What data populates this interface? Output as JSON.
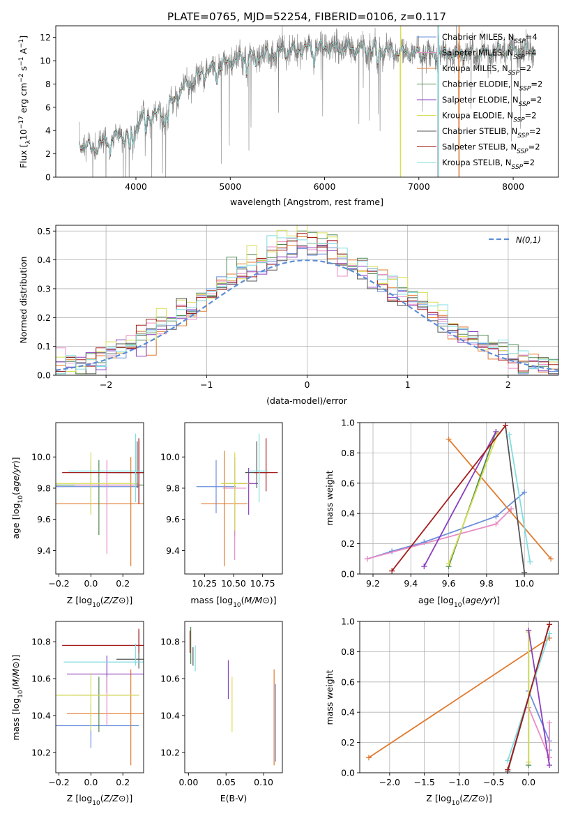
{
  "figure_title": "PLATE=0765, MJD=52254, FIBERID=0106, z=0.117",
  "colors": [
    "#6a8fde",
    "#e07a2f",
    "#4f8a53",
    "#8a3fbf",
    "#e98bc4",
    "#d8de55",
    "#555555",
    "#a51c1c",
    "#7fdde0"
  ],
  "chart_data": [
    {
      "id": "spectrum",
      "type": "line",
      "xlabel": "wavelength [Angstrom, rest frame]",
      "ylabel": "Flux [f_λ10^-17 erg cm^-2 s^-1 A^-1]",
      "xlim": [
        3150,
        8480
      ],
      "ylim": [
        0,
        13
      ],
      "xticks": [
        4000,
        5000,
        6000,
        7000,
        8000
      ],
      "yticks": [
        0,
        2,
        4,
        6,
        8,
        10,
        12
      ],
      "grid": false,
      "legend_position": "right",
      "data_color": "#808080",
      "series": [
        {
          "name": "Chabrier MILES, N_SSP=4",
          "color": "#6a8fde"
        },
        {
          "name": "Salpeter MILES, N_SSP=4",
          "color": "#e98bc4"
        },
        {
          "name": "Kroupa MILES, N_SSP=2",
          "color": "#e07a2f"
        },
        {
          "name": "Chabrier ELODIE, N_SSP=2",
          "color": "#4f8a53"
        },
        {
          "name": "Salpeter ELODIE, N_SSP=2",
          "color": "#8a3fbf"
        },
        {
          "name": "Kroupa ELODIE, N_SSP=2",
          "color": "#d8de55"
        },
        {
          "name": "Chabrier STELIB, N_SSP=2",
          "color": "#555555"
        },
        {
          "name": "Salpeter STELIB, N_SSP=2",
          "color": "#a51c1c"
        },
        {
          "name": "Kroupa STELIB, N_SSP=2",
          "color": "#7fdde0"
        }
      ],
      "continuum": [
        [
          3400,
          3.0
        ],
        [
          3550,
          2.4
        ],
        [
          3700,
          3.2
        ],
        [
          3800,
          3.5
        ],
        [
          3950,
          3.6
        ],
        [
          4050,
          5.0
        ],
        [
          4300,
          5.6
        ],
        [
          4500,
          7.6
        ],
        [
          4700,
          8.9
        ],
        [
          4900,
          9.6
        ],
        [
          5100,
          10.2
        ],
        [
          5300,
          10.5
        ],
        [
          5600,
          10.8
        ],
        [
          6000,
          11.2
        ],
        [
          6500,
          11.0
        ],
        [
          7000,
          10.6
        ],
        [
          7500,
          10.6
        ],
        [
          8000,
          10.9
        ],
        [
          8200,
          11.0
        ]
      ]
    },
    {
      "id": "residuals",
      "type": "histogram",
      "xlabel": "(data-model)/error",
      "ylabel": "Normed distribution",
      "xlim": [
        -2.5,
        2.5
      ],
      "ylim": [
        0,
        0.52
      ],
      "xticks": [
        -2,
        -1,
        0,
        1,
        2
      ],
      "yticks": [
        0.0,
        0.1,
        0.2,
        0.3,
        0.4,
        0.5
      ],
      "grid": true,
      "legend_position": "upper right",
      "reference_curve": {
        "name": "N(0,1)",
        "color": "#5b8dd6"
      },
      "bins": [
        -2.5,
        2.5,
        50
      ]
    },
    {
      "id": "age_vs_Z",
      "type": "errorbar",
      "xlabel": "Z [log10(Z/Z☉)]",
      "ylabel": "age  [log10(age/yr)]",
      "xlim": [
        -0.22,
        0.33
      ],
      "ylim": [
        9.25,
        10.22
      ],
      "xticks": [
        -0.2,
        0.0,
        0.2
      ],
      "yticks": [
        9.4,
        9.6,
        9.8,
        10.0
      ],
      "grid": false,
      "points": [
        {
          "x": 0.0,
          "y": 9.81,
          "xerr": 0.3,
          "yerr": [
            0.17,
            0.17
          ],
          "color": "#6a8fde"
        },
        {
          "x": 0.25,
          "y": 9.7,
          "xerr": 0.5,
          "yerr": [
            0.4,
            0.3
          ],
          "color": "#e07a2f"
        },
        {
          "x": 0.05,
          "y": 9.82,
          "xerr": 0.3,
          "yerr": [
            0.32,
            0.16
          ],
          "color": "#4f8a53"
        },
        {
          "x": 0.3,
          "y": 9.9,
          "xerr": 0.2,
          "yerr": [
            0.2,
            0.2
          ],
          "color": "#8a3fbf"
        },
        {
          "x": 0.1,
          "y": 9.82,
          "xerr": 0.2,
          "yerr": [
            0.44,
            0.16
          ],
          "color": "#e98bc4"
        },
        {
          "x": 0.0,
          "y": 9.83,
          "xerr": 0.3,
          "yerr": [
            0.2,
            0.2
          ],
          "color": "#d8de55"
        },
        {
          "x": 0.29,
          "y": 9.9,
          "xerr": 0.15,
          "yerr": [
            0.1,
            0.2
          ],
          "color": "#555555"
        },
        {
          "x": 0.3,
          "y": 9.9,
          "xerr": 0.48,
          "yerr": [
            0.2,
            0.22
          ],
          "color": "#a51c1c"
        },
        {
          "x": 0.28,
          "y": 9.91,
          "xerr": 0.42,
          "yerr": [
            0.2,
            0.24
          ],
          "color": "#7fdde0"
        }
      ]
    },
    {
      "id": "age_vs_mass",
      "type": "errorbar",
      "xlabel": "mass [log10(M/M☉)]",
      "ylabel": "",
      "xlim": [
        10.08,
        10.92
      ],
      "ylim": [
        9.25,
        10.22
      ],
      "xticks": [
        10.25,
        10.5,
        10.75
      ],
      "xtick_labels": [
        "10.25",
        "10.50",
        "10.75"
      ],
      "yticks": [
        9.4,
        9.6,
        9.8,
        10.0
      ],
      "grid": false,
      "points": [
        {
          "x": 10.35,
          "y": 9.81,
          "xerr": 0.17,
          "yerr": [
            0.17,
            0.17
          ],
          "color": "#6a8fde"
        },
        {
          "x": 10.42,
          "y": 9.7,
          "xerr": 0.2,
          "yerr": [
            0.4,
            0.34
          ],
          "color": "#e07a2f"
        },
        {
          "x": 10.51,
          "y": 9.83,
          "xerr": 0.1,
          "yerr": [
            0.34,
            0.17
          ],
          "color": "#4f8a53"
        },
        {
          "x": 10.63,
          "y": 9.83,
          "xerr": 0.08,
          "yerr": [
            0.2,
            0.1
          ],
          "color": "#8a3fbf"
        },
        {
          "x": 10.51,
          "y": 9.8,
          "xerr": 0.1,
          "yerr": [
            0.46,
            0.19
          ],
          "color": "#e98bc4"
        },
        {
          "x": 10.51,
          "y": 9.83,
          "xerr": 0.12,
          "yerr": [
            0.3,
            0.2
          ],
          "color": "#d8de55"
        },
        {
          "x": 10.7,
          "y": 9.9,
          "xerr": 0.1,
          "yerr": [
            0.1,
            0.2
          ],
          "color": "#555555"
        },
        {
          "x": 10.78,
          "y": 9.9,
          "xerr": 0.1,
          "yerr": [
            0.12,
            0.22
          ],
          "color": "#a51c1c"
        },
        {
          "x": 10.72,
          "y": 9.91,
          "xerr": 0.08,
          "yerr": [
            0.2,
            0.24
          ],
          "color": "#7fdde0"
        }
      ]
    },
    {
      "id": "weight_vs_age",
      "type": "line",
      "xlabel": "age  [log10(age/yr)]",
      "ylabel": "mass weight",
      "xlim": [
        9.13,
        10.18
      ],
      "ylim": [
        0,
        1
      ],
      "xticks": [
        9.2,
        9.4,
        9.6,
        9.8,
        10.0
      ],
      "yticks": [
        0.0,
        0.2,
        0.4,
        0.6,
        0.8,
        1.0
      ],
      "grid": true,
      "series": [
        {
          "color": "#6a8fde",
          "x": [
            9.17,
            9.3,
            9.47,
            9.85,
            10.0
          ],
          "y": [
            0.1,
            0.15,
            0.21,
            0.38,
            0.54
          ]
        },
        {
          "color": "#e98bc4",
          "x": [
            9.17,
            9.85,
            9.93
          ],
          "y": [
            0.1,
            0.33,
            0.43
          ]
        },
        {
          "color": "#e07a2f",
          "x": [
            9.6,
            10.14
          ],
          "y": [
            0.89,
            0.1
          ]
        },
        {
          "color": "#4f8a53",
          "x": [
            9.6,
            9.85
          ],
          "y": [
            0.05,
            0.94
          ]
        },
        {
          "color": "#d8de55",
          "x": [
            9.6,
            9.86
          ],
          "y": [
            0.07,
            0.93
          ]
        },
        {
          "color": "#8a3fbf",
          "x": [
            9.47,
            9.85
          ],
          "y": [
            0.05,
            0.94
          ]
        },
        {
          "color": "#555555",
          "x": [
            9.9,
            10.0
          ],
          "y": [
            0.98,
            0.01
          ]
        },
        {
          "color": "#7fdde0",
          "x": [
            9.92,
            10.03
          ],
          "y": [
            0.92,
            0.08
          ]
        },
        {
          "color": "#a51c1c",
          "x": [
            9.3,
            9.9
          ],
          "y": [
            0.02,
            0.98
          ]
        }
      ]
    },
    {
      "id": "mass_vs_Z",
      "type": "errorbar",
      "xlabel": "Z [log10(Z/Z☉)]",
      "ylabel": "mass [log10(M/M☉)]",
      "xlim": [
        -0.22,
        0.33
      ],
      "ylim": [
        10.09,
        10.91
      ],
      "xticks": [
        -0.2,
        0.0,
        0.2
      ],
      "yticks": [
        10.2,
        10.4,
        10.6,
        10.8
      ],
      "grid": false,
      "points": [
        {
          "x": 0.0,
          "y": 10.345,
          "xerr": 0.3,
          "yerr": [
            0.12,
            0.12
          ],
          "color": "#6a8fde"
        },
        {
          "x": 0.25,
          "y": 10.41,
          "xerr": 0.4,
          "yerr": [
            0.28,
            0.24
          ],
          "color": "#e07a2f"
        },
        {
          "x": 0.05,
          "y": 10.51,
          "xerr": 0.25,
          "yerr": [
            0.2,
            0.1
          ],
          "color": "#4f8a53"
        },
        {
          "x": 0.1,
          "y": 10.625,
          "xerr": 0.25,
          "yerr": [
            0.1,
            0.1
          ],
          "color": "#8a3fbf"
        },
        {
          "x": 0.1,
          "y": 10.51,
          "xerr": 0.2,
          "yerr": [
            0.16,
            0.1
          ],
          "color": "#e98bc4"
        },
        {
          "x": 0.0,
          "y": 10.51,
          "xerr": 0.3,
          "yerr": [
            0.19,
            0.12
          ],
          "color": "#d8de55"
        },
        {
          "x": 0.3,
          "y": 10.705,
          "xerr": 0.14,
          "yerr": [
            0.05,
            0.15
          ],
          "color": "#555555"
        },
        {
          "x": 0.3,
          "y": 10.78,
          "xerr": 0.48,
          "yerr": [
            0.04,
            0.09
          ],
          "color": "#a51c1c"
        },
        {
          "x": 0.28,
          "y": 10.69,
          "xerr": 0.45,
          "yerr": [
            0.02,
            0.1
          ],
          "color": "#7fdde0"
        }
      ]
    },
    {
      "id": "mass_vs_EBV",
      "type": "errorbar",
      "xlabel": "E(B-V)",
      "ylabel": "",
      "xlim": [
        -0.005,
        0.125
      ],
      "ylim": [
        10.09,
        10.91
      ],
      "xticks": [
        0.0,
        0.05,
        0.1
      ],
      "xtick_labels": [
        "0.00",
        "0.05",
        "0.10"
      ],
      "yticks": [
        10.2,
        10.4,
        10.6,
        10.8
      ],
      "grid": false,
      "points": [
        {
          "x": 0.116,
          "y": 10.35,
          "yerr": [
            0.2,
            0.22
          ],
          "color": "#6a8fde"
        },
        {
          "x": 0.114,
          "y": 10.41,
          "yerr": [
            0.28,
            0.24
          ],
          "color": "#e07a2f"
        },
        {
          "x": 0.003,
          "y": 10.78,
          "yerr": [
            0.1,
            0.1
          ],
          "color": "#4f8a53"
        },
        {
          "x": 0.053,
          "y": 10.62,
          "yerr": [
            0.13,
            0.08
          ],
          "color": "#8a3fbf"
        },
        {
          "x": 0.058,
          "y": 10.46,
          "yerr": [
            0.15,
            0.15
          ],
          "color": "#d8de55"
        },
        {
          "x": 0.002,
          "y": 10.8,
          "yerr": [
            0.06,
            0.06
          ],
          "color": "#a51c1c"
        },
        {
          "x": 0.006,
          "y": 10.72,
          "yerr": [
            0.05,
            0.05
          ],
          "color": "#555555"
        },
        {
          "x": 0.009,
          "y": 10.71,
          "yerr": [
            0.07,
            0.07
          ],
          "color": "#7fdde0"
        }
      ]
    },
    {
      "id": "weight_vs_Z",
      "type": "line",
      "xlabel": "Z [log10(Z/Z☉)]",
      "ylabel": "mass weight",
      "xlim": [
        -2.43,
        0.43
      ],
      "ylim": [
        0,
        1
      ],
      "xticks": [
        -2.0,
        -1.5,
        -1.0,
        -0.5,
        0.0
      ],
      "yticks": [
        0.0,
        0.2,
        0.4,
        0.6,
        0.8,
        1.0
      ],
      "grid": true,
      "series": [
        {
          "color": "#e07a2f",
          "x": [
            -2.3,
            0.3
          ],
          "y": [
            0.1,
            0.89
          ]
        },
        {
          "color": "#6a8fde",
          "x": [
            0.0,
            0.3,
            0.3
          ],
          "y": [
            0.54,
            0.21,
            0.15
          ]
        },
        {
          "color": "#e98bc4",
          "x": [
            0.0,
            0.3,
            0.3
          ],
          "y": [
            0.43,
            0.1,
            0.33
          ]
        },
        {
          "color": "#4f8a53",
          "x": [
            0.0,
            0.0
          ],
          "y": [
            0.05,
            0.94
          ]
        },
        {
          "color": "#d8de55",
          "x": [
            0.0,
            0.0
          ],
          "y": [
            0.07,
            0.93
          ]
        },
        {
          "color": "#8a3fbf",
          "x": [
            0.0,
            0.3
          ],
          "y": [
            0.94,
            0.05
          ]
        },
        {
          "color": "#555555",
          "x": [
            -0.3,
            0.3
          ],
          "y": [
            0.01,
            0.98
          ]
        },
        {
          "color": "#7fdde0",
          "x": [
            -0.3,
            0.3
          ],
          "y": [
            0.08,
            0.92
          ]
        },
        {
          "color": "#a51c1c",
          "x": [
            -0.3,
            0.3
          ],
          "y": [
            0.02,
            0.98
          ]
        }
      ]
    }
  ]
}
